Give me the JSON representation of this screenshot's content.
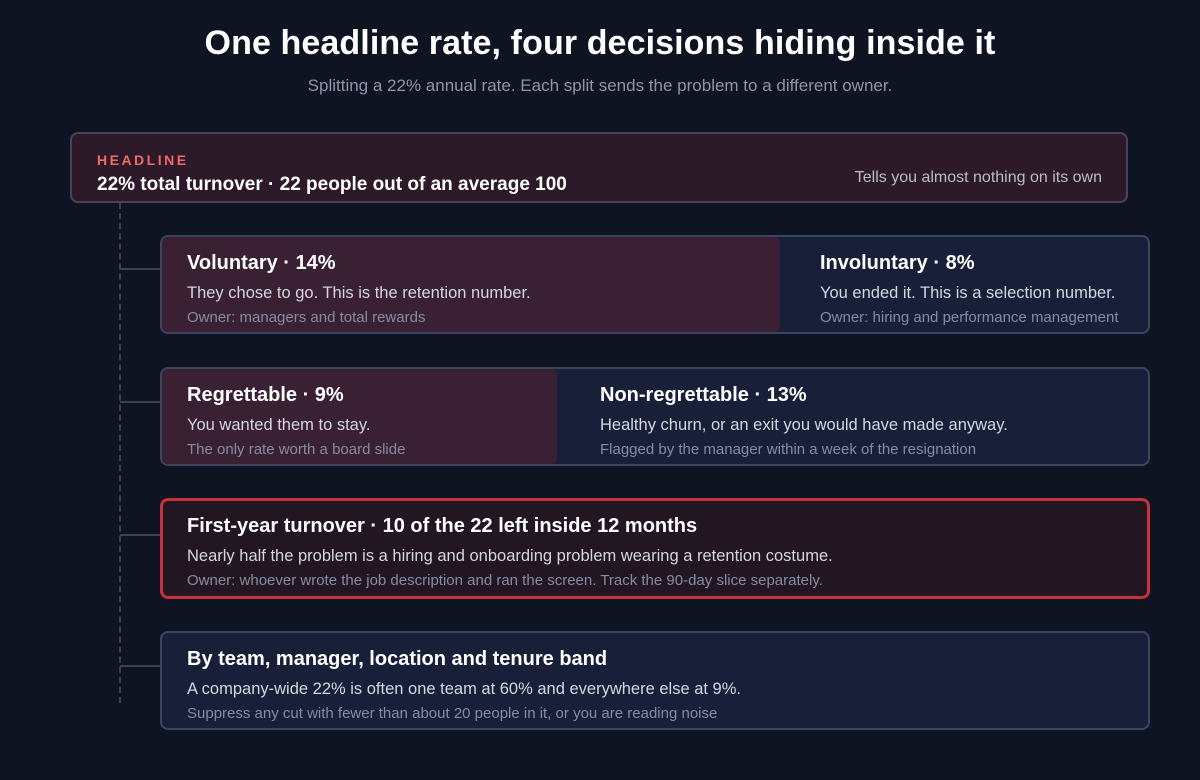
{
  "header": {
    "title": "One headline rate, four decisions hiding inside it",
    "subtitle": "Splitting a 22% annual rate. Each split sends the problem to a different owner."
  },
  "headline": {
    "tag": "HEADLINE",
    "main": "22% total turnover · 22 people out of an average 100",
    "note": "Tells you almost nothing on its own"
  },
  "splits": {
    "voluntary": {
      "title": "Voluntary · 14%",
      "desc": "They chose to go. This is the retention number.",
      "owner": "Owner: managers and total rewards",
      "rate_pct": 14
    },
    "involuntary": {
      "title": "Involuntary · 8%",
      "desc": "You ended it. This is a selection number.",
      "owner": "Owner: hiring and performance management",
      "rate_pct": 8
    },
    "regrettable": {
      "title": "Regrettable · 9%",
      "desc": "You wanted them to stay.",
      "owner": "The only rate worth a board slide",
      "rate_pct": 9
    },
    "non_regrettable": {
      "title": "Non-regrettable · 13%",
      "desc": "Healthy churn, or an exit you would have made anyway.",
      "owner": "Flagged by the manager within a week of the resignation",
      "rate_pct": 13
    },
    "first_year": {
      "title": "First-year turnover · 10 of the 22 left inside 12 months",
      "desc": "Nearly half the problem is a hiring and onboarding problem wearing a retention costume.",
      "owner": "Owner: whoever wrote the job description and ran the screen. Track the 90-day slice separately."
    },
    "by_team": {
      "title": "By team, manager, location and tenure band",
      "desc": "A company-wide 22% is often one team at 60% and everywhere else at 9%.",
      "owner": "Suppress any cut with fewer than about 20 people in it, or you are reading noise"
    }
  },
  "colors": {
    "background": "#0e1422",
    "highlight_segment": "#3a2033",
    "card": "#172038",
    "alert_border": "#c8313a",
    "tag": "#f06a6a"
  }
}
